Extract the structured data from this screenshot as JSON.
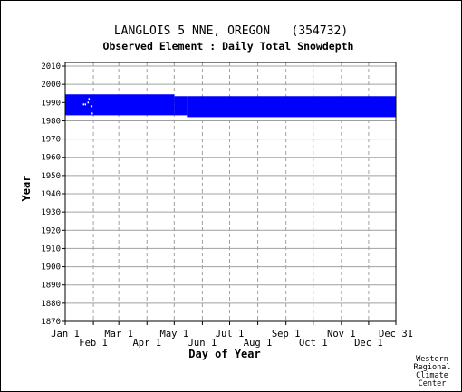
{
  "chart_data": {
    "type": "heatmap",
    "title": "LANGLOIS 5 NNE, OREGON   (354732)",
    "subtitle": "Observed Element : Daily Total Snowdepth",
    "xlabel": "Day of Year",
    "ylabel": "Year",
    "x_ticks_upper": [
      "Jan 1",
      "Mar 1",
      "May 1",
      "Jul 1",
      "Sep 1",
      "Nov 1",
      "Dec 31"
    ],
    "x_ticks_lower": [
      "Feb 1",
      "Apr 1",
      "Jun 1",
      "Aug 1",
      "Oct 1",
      "Dec 1"
    ],
    "x_tick_days": [
      1,
      32,
      60,
      91,
      121,
      152,
      182,
      213,
      244,
      274,
      305,
      335,
      365
    ],
    "y_ticks": [
      1870,
      1880,
      1890,
      1900,
      1910,
      1920,
      1930,
      1940,
      1950,
      1960,
      1970,
      1980,
      1990,
      2000,
      2010
    ],
    "xlim": [
      1,
      365
    ],
    "ylim": [
      1870,
      2012
    ],
    "grid": true,
    "data_color": "#0000ff",
    "record_blocks": [
      {
        "day_start": 1,
        "day_end": 121,
        "year_start": 1983,
        "year_end": 1994.5
      },
      {
        "day_start": 121,
        "day_end": 135,
        "year_start": 1983,
        "year_end": 1993.5
      },
      {
        "day_start": 135,
        "day_end": 365,
        "year_start": 1982,
        "year_end": 1993.5
      }
    ],
    "gaps": [
      {
        "day": 21,
        "year": 1989
      },
      {
        "day": 23,
        "year": 1989
      },
      {
        "day": 26,
        "year": 1990
      },
      {
        "day": 27,
        "year": 1992
      },
      {
        "day": 30,
        "year": 1988
      },
      {
        "day": 30.5,
        "year": 1984
      }
    ]
  },
  "credit": [
    "Western",
    "Regional",
    "Climate",
    "Center"
  ]
}
